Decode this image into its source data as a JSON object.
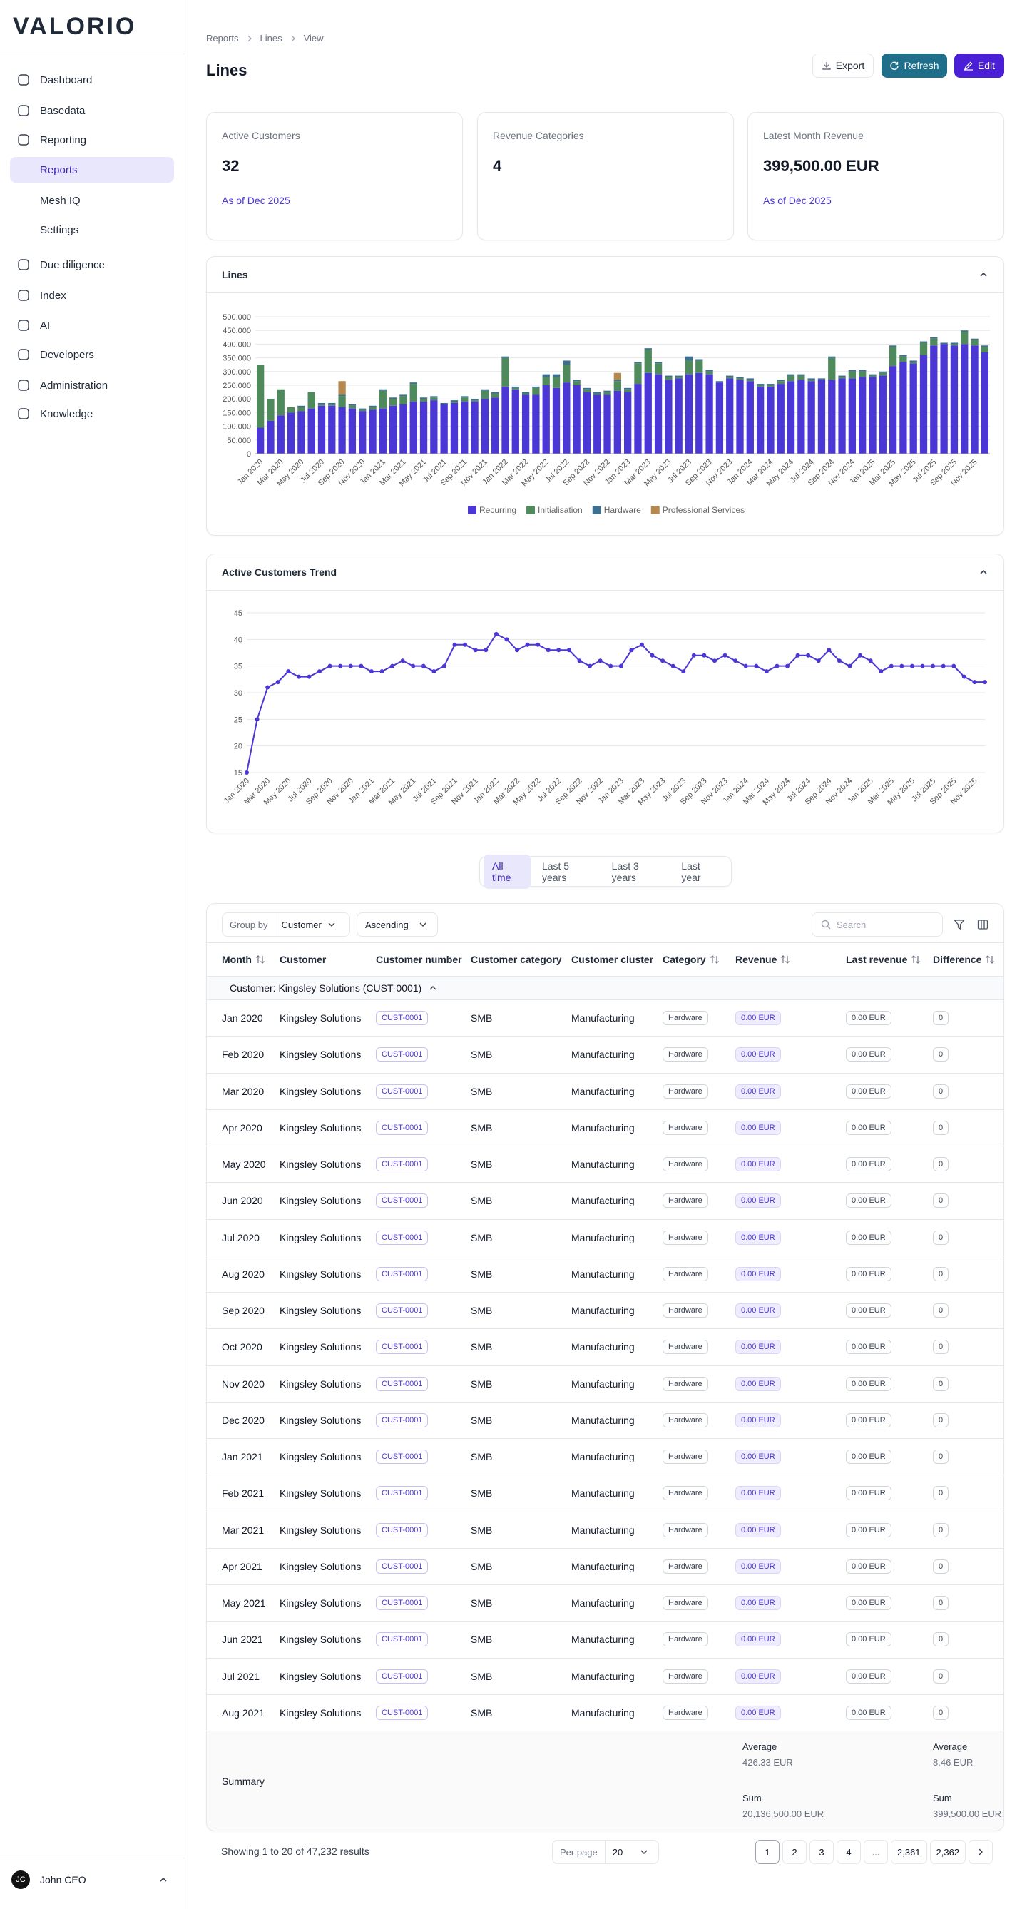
{
  "sidebar": {
    "logo": "VALORIO",
    "nav": [
      {
        "label": "Dashboard",
        "sub": false,
        "active": false
      },
      {
        "label": "Basedata",
        "sub": false,
        "active": false
      },
      {
        "label": "Reporting",
        "sub": false,
        "active": false
      },
      {
        "label": "Reports",
        "sub": true,
        "active": true
      },
      {
        "label": "Mesh IQ",
        "sub": true,
        "active": false
      },
      {
        "label": "Settings",
        "sub": true,
        "active": false
      },
      {
        "label": "Due diligence",
        "sub": false,
        "active": false
      },
      {
        "label": "Index",
        "sub": false,
        "active": false
      },
      {
        "label": "AI",
        "sub": false,
        "active": false
      },
      {
        "label": "Developers",
        "sub": false,
        "active": false
      },
      {
        "label": "Administration",
        "sub": false,
        "active": false
      },
      {
        "label": "Knowledge",
        "sub": false,
        "active": false
      }
    ],
    "user": {
      "initials": "JC",
      "name": "John CEO"
    }
  },
  "breadcrumb": [
    "Reports",
    "Lines",
    "View"
  ],
  "header": {
    "title": "Lines",
    "buttons": [
      "Export",
      "Refresh",
      "Edit"
    ]
  },
  "kpis": [
    {
      "label": "Active Customers",
      "value": "32",
      "note": "As of Dec 2025"
    },
    {
      "label": "Revenue Categories",
      "value": "4"
    },
    {
      "label": "Latest Month Revenue",
      "value": "399,500.00 EUR",
      "note": "As of Dec 2025"
    }
  ],
  "chart_data": [
    {
      "type": "bar",
      "stacked": true,
      "title": "Lines",
      "categories": [
        "Jan 2020",
        null,
        "Mar 2020",
        null,
        "May 2020",
        null,
        "Jul 2020",
        null,
        "Sep 2020",
        null,
        "Nov 2020",
        null,
        "Jan 2021",
        null,
        "Mar 2021",
        null,
        "May 2021",
        null,
        "Jul 2021",
        null,
        "Sep 2021",
        null,
        "Nov 2021",
        null,
        "Jan 2022",
        null,
        "Mar 2022",
        null,
        "May 2022",
        null,
        "Jul 2022",
        null,
        "Sep 2022",
        null,
        "Nov 2022",
        null,
        "Jan 2023",
        null,
        "Mar 2023",
        null,
        "May 2023",
        null,
        "Jul 2023",
        null,
        "Sep 2023",
        null,
        "Nov 2023",
        null,
        "Jan 2024",
        null,
        "Mar 2024",
        null,
        "May 2024",
        null,
        "Jul 2024",
        null,
        "Sep 2024",
        null,
        "Nov 2024",
        null,
        "Jan 2025",
        null,
        "Mar 2025",
        null,
        "May 2025",
        null,
        "Jul 2025",
        null,
        "Sep 2025",
        null,
        "Nov 2025",
        null
      ],
      "series": [
        {
          "name": "Recurring",
          "color": "#4b36d6",
          "values": [
            95000,
            120000,
            140000,
            150000,
            155000,
            165000,
            175000,
            175000,
            170000,
            165000,
            155000,
            160000,
            165000,
            175000,
            180000,
            190000,
            190000,
            195000,
            180000,
            185000,
            190000,
            190000,
            200000,
            205000,
            245000,
            235000,
            215000,
            215000,
            250000,
            240000,
            260000,
            250000,
            225000,
            215000,
            215000,
            230000,
            225000,
            255000,
            295000,
            290000,
            270000,
            275000,
            290000,
            295000,
            290000,
            260000,
            275000,
            270000,
            265000,
            245000,
            245000,
            255000,
            265000,
            270000,
            265000,
            270000,
            270000,
            275000,
            275000,
            280000,
            280000,
            285000,
            320000,
            335000,
            330000,
            360000,
            395000,
            400000,
            395000,
            400000,
            395000,
            370000
          ]
        },
        {
          "name": "Initialisation",
          "color": "#4f8a5c",
          "values": [
            230000,
            80000,
            95000,
            20000,
            15000,
            60000,
            5000,
            5000,
            40000,
            10000,
            5000,
            10000,
            65000,
            25000,
            30000,
            65000,
            10000,
            10000,
            0,
            5000,
            15000,
            5000,
            30000,
            15000,
            105000,
            5000,
            5000,
            25000,
            30000,
            40000,
            65000,
            15000,
            10000,
            5000,
            10000,
            35000,
            10000,
            75000,
            85000,
            40000,
            10000,
            5000,
            50000,
            45000,
            10000,
            0,
            5000,
            5000,
            5000,
            5000,
            5000,
            10000,
            20000,
            15000,
            5000,
            0,
            80000,
            5000,
            25000,
            20000,
            5000,
            10000,
            70000,
            20000,
            5000,
            45000,
            25000,
            0,
            5000,
            45000,
            20000,
            20000
          ]
        },
        {
          "name": "Hardware",
          "color": "#3d6f90",
          "values": [
            0,
            0,
            0,
            0,
            5000,
            0,
            5000,
            5000,
            5000,
            5000,
            5000,
            5000,
            5000,
            5000,
            5000,
            5000,
            5000,
            5000,
            5000,
            5000,
            5000,
            5000,
            5000,
            5000,
            5000,
            5000,
            5000,
            5000,
            10000,
            10000,
            15000,
            5000,
            5000,
            5000,
            5000,
            5000,
            5000,
            5000,
            5000,
            5000,
            5000,
            5000,
            15000,
            5000,
            5000,
            5000,
            5000,
            5000,
            5000,
            5000,
            5000,
            5000,
            5000,
            5000,
            5000,
            5000,
            5000,
            5000,
            5000,
            5000,
            5000,
            5000,
            5000,
            5000,
            5000,
            5000,
            5000,
            5000,
            5000,
            5000,
            5000,
            5000
          ]
        },
        {
          "name": "Professional Services",
          "color": "#b5884f",
          "values": [
            0,
            0,
            0,
            0,
            0,
            0,
            0,
            0,
            50000,
            0,
            0,
            0,
            0,
            0,
            0,
            0,
            0,
            0,
            0,
            0,
            0,
            0,
            0,
            0,
            0,
            0,
            0,
            0,
            0,
            0,
            0,
            0,
            0,
            0,
            0,
            25000,
            0,
            0,
            0,
            0,
            0,
            0,
            0,
            0,
            0,
            0,
            0,
            0,
            0,
            0,
            0,
            0,
            0,
            0,
            0,
            0,
            0,
            0,
            0,
            0,
            0,
            0,
            0,
            0,
            0,
            0,
            0,
            0,
            0,
            0,
            0,
            0
          ]
        }
      ],
      "ylim": [
        0,
        500000
      ],
      "yticks": [
        0,
        {
          "value": 50000,
          "label": "50.000"
        },
        {
          "value": 100000,
          "label": "100.000"
        },
        {
          "value": 150000,
          "label": "150.000"
        },
        {
          "value": 200000,
          "label": "200.000"
        },
        {
          "value": 250000,
          "label": "250.000"
        },
        {
          "value": 300000,
          "label": "300.000"
        },
        {
          "value": 350000,
          "label": "350.000"
        },
        {
          "value": 400000,
          "label": "400.000"
        },
        {
          "value": 450000,
          "label": "450.000"
        },
        {
          "value": 500000,
          "label": "500.000"
        }
      ],
      "grid": true,
      "legend": "bottom"
    },
    {
      "type": "line",
      "title": "Active Customers Trend",
      "categories": [
        "Jan 2020",
        null,
        "Mar 2020",
        null,
        "May 2020",
        null,
        "Jul 2020",
        null,
        "Sep 2020",
        null,
        "Nov 2020",
        null,
        "Jan 2021",
        null,
        "Mar 2021",
        null,
        "May 2021",
        null,
        "Jul 2021",
        null,
        "Sep 2021",
        null,
        "Nov 2021",
        null,
        "Jan 2022",
        null,
        "Mar 2022",
        null,
        "May 2022",
        null,
        "Jul 2022",
        null,
        "Sep 2022",
        null,
        "Nov 2022",
        null,
        "Jan 2023",
        null,
        "Mar 2023",
        null,
        "May 2023",
        null,
        "Jul 2023",
        null,
        "Sep 2023",
        null,
        "Nov 2023",
        null,
        "Jan 2024",
        null,
        "Mar 2024",
        null,
        "May 2024",
        null,
        "Jul 2024",
        null,
        "Sep 2024",
        null,
        "Nov 2024",
        null,
        "Jan 2025",
        null,
        "Mar 2025",
        null,
        "May 2025",
        null,
        "Jul 2025",
        null,
        "Sep 2025",
        null,
        "Nov 2025",
        null
      ],
      "values": [
        15,
        25,
        31,
        32,
        34,
        33,
        33,
        34,
        35,
        35,
        35,
        35,
        34,
        34,
        35,
        36,
        35,
        35,
        34,
        35,
        39,
        39,
        38,
        38,
        41,
        40,
        38,
        39,
        39,
        38,
        38,
        38,
        36,
        35,
        36,
        35,
        35,
        38,
        39,
        37,
        36,
        35,
        34,
        37,
        37,
        36,
        37,
        36,
        35,
        35,
        34,
        35,
        35,
        37,
        37,
        36,
        38,
        36,
        35,
        37,
        36,
        34,
        35,
        35,
        35,
        35,
        35,
        35,
        35,
        33,
        32,
        32
      ],
      "color": "#4b36d6",
      "ylim": [
        15,
        45
      ],
      "yticks": [
        15,
        20,
        25,
        30,
        35,
        40,
        45
      ],
      "grid": true
    }
  ],
  "time_tabs": {
    "options": [
      "All time",
      "Last 5 years",
      "Last 3 years",
      "Last year"
    ],
    "active": 0
  },
  "toolbar": {
    "group_by_label": "Group by",
    "group_by": "Customer",
    "order": "Ascending",
    "search_placeholder": "Search"
  },
  "table": {
    "columns": [
      {
        "label": "Month",
        "sortable": true
      },
      {
        "label": "Customer",
        "sortable": false
      },
      {
        "label": "Customer number",
        "sortable": false
      },
      {
        "label": "Customer category",
        "sortable": false
      },
      {
        "label": "Customer cluster",
        "sortable": false
      },
      {
        "label": "Category",
        "sortable": true
      },
      {
        "label": "Revenue",
        "sortable": true
      },
      {
        "label": "Last revenue",
        "sortable": true
      },
      {
        "label": "Difference",
        "sortable": true
      }
    ],
    "group_label": "Customer: Kingsley Solutions (CUST-0001)",
    "rows": [
      [
        "Jan 2020",
        "Kingsley Solutions",
        "CUST-0001",
        "SMB",
        "Manufacturing",
        "Hardware",
        "0.00 EUR",
        "0.00 EUR",
        "0"
      ],
      [
        "Feb 2020",
        "Kingsley Solutions",
        "CUST-0001",
        "SMB",
        "Manufacturing",
        "Hardware",
        "0.00 EUR",
        "0.00 EUR",
        "0"
      ],
      [
        "Mar 2020",
        "Kingsley Solutions",
        "CUST-0001",
        "SMB",
        "Manufacturing",
        "Hardware",
        "0.00 EUR",
        "0.00 EUR",
        "0"
      ],
      [
        "Apr 2020",
        "Kingsley Solutions",
        "CUST-0001",
        "SMB",
        "Manufacturing",
        "Hardware",
        "0.00 EUR",
        "0.00 EUR",
        "0"
      ],
      [
        "May 2020",
        "Kingsley Solutions",
        "CUST-0001",
        "SMB",
        "Manufacturing",
        "Hardware",
        "0.00 EUR",
        "0.00 EUR",
        "0"
      ],
      [
        "Jun 2020",
        "Kingsley Solutions",
        "CUST-0001",
        "SMB",
        "Manufacturing",
        "Hardware",
        "0.00 EUR",
        "0.00 EUR",
        "0"
      ],
      [
        "Jul 2020",
        "Kingsley Solutions",
        "CUST-0001",
        "SMB",
        "Manufacturing",
        "Hardware",
        "0.00 EUR",
        "0.00 EUR",
        "0"
      ],
      [
        "Aug 2020",
        "Kingsley Solutions",
        "CUST-0001",
        "SMB",
        "Manufacturing",
        "Hardware",
        "0.00 EUR",
        "0.00 EUR",
        "0"
      ],
      [
        "Sep 2020",
        "Kingsley Solutions",
        "CUST-0001",
        "SMB",
        "Manufacturing",
        "Hardware",
        "0.00 EUR",
        "0.00 EUR",
        "0"
      ],
      [
        "Oct 2020",
        "Kingsley Solutions",
        "CUST-0001",
        "SMB",
        "Manufacturing",
        "Hardware",
        "0.00 EUR",
        "0.00 EUR",
        "0"
      ],
      [
        "Nov 2020",
        "Kingsley Solutions",
        "CUST-0001",
        "SMB",
        "Manufacturing",
        "Hardware",
        "0.00 EUR",
        "0.00 EUR",
        "0"
      ],
      [
        "Dec 2020",
        "Kingsley Solutions",
        "CUST-0001",
        "SMB",
        "Manufacturing",
        "Hardware",
        "0.00 EUR",
        "0.00 EUR",
        "0"
      ],
      [
        "Jan 2021",
        "Kingsley Solutions",
        "CUST-0001",
        "SMB",
        "Manufacturing",
        "Hardware",
        "0.00 EUR",
        "0.00 EUR",
        "0"
      ],
      [
        "Feb 2021",
        "Kingsley Solutions",
        "CUST-0001",
        "SMB",
        "Manufacturing",
        "Hardware",
        "0.00 EUR",
        "0.00 EUR",
        "0"
      ],
      [
        "Mar 2021",
        "Kingsley Solutions",
        "CUST-0001",
        "SMB",
        "Manufacturing",
        "Hardware",
        "0.00 EUR",
        "0.00 EUR",
        "0"
      ],
      [
        "Apr 2021",
        "Kingsley Solutions",
        "CUST-0001",
        "SMB",
        "Manufacturing",
        "Hardware",
        "0.00 EUR",
        "0.00 EUR",
        "0"
      ],
      [
        "May 2021",
        "Kingsley Solutions",
        "CUST-0001",
        "SMB",
        "Manufacturing",
        "Hardware",
        "0.00 EUR",
        "0.00 EUR",
        "0"
      ],
      [
        "Jun 2021",
        "Kingsley Solutions",
        "CUST-0001",
        "SMB",
        "Manufacturing",
        "Hardware",
        "0.00 EUR",
        "0.00 EUR",
        "0"
      ],
      [
        "Jul 2021",
        "Kingsley Solutions",
        "CUST-0001",
        "SMB",
        "Manufacturing",
        "Hardware",
        "0.00 EUR",
        "0.00 EUR",
        "0"
      ],
      [
        "Aug 2021",
        "Kingsley Solutions",
        "CUST-0001",
        "SMB",
        "Manufacturing",
        "Hardware",
        "0.00 EUR",
        "0.00 EUR",
        "0"
      ]
    ]
  },
  "summary": {
    "label": "Summary",
    "revenue": {
      "average_label": "Average",
      "average": "426.33 EUR",
      "sum_label": "Sum",
      "sum": "20,136,500.00 EUR"
    },
    "difference": {
      "average_label": "Average",
      "average": "8.46 EUR",
      "sum_label": "Sum",
      "sum": "399,500.00 EUR"
    }
  },
  "pagination": {
    "summary": "Showing 1 to 20 of 47,232 results",
    "per_page_label": "Per page",
    "per_page": "20",
    "pages": [
      "1",
      "2",
      "3",
      "4",
      "...",
      "2,361",
      "2,362"
    ],
    "current": 0
  }
}
